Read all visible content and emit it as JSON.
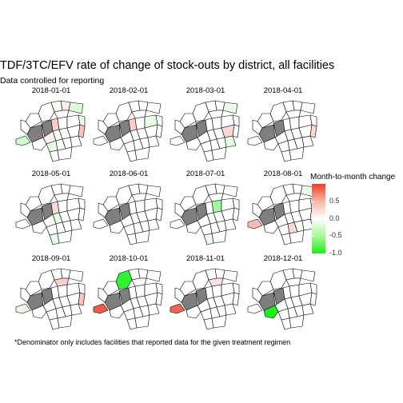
{
  "title": "TDF/3TC/EFV rate of change of stock-outs by district, all facilities",
  "subtitle": "Data controlled for reporting",
  "caption": "*Denominator only includes facilities that reported data for the given treatment regimen",
  "legend": {
    "title": "Month-to-month change",
    "ticks": [
      "0.5",
      "0.0",
      "-0.5",
      "-1.0"
    ],
    "tick_values": [
      0.5,
      0.0,
      -0.5,
      -1.0
    ],
    "range": [
      -1.0,
      1.0
    ],
    "colors": {
      "high": "#f03c28",
      "mid": "#ffffff",
      "low": "#1af01a",
      "no_data": "#7f7f7f"
    }
  },
  "panels": [
    {
      "label": "2018-01-01",
      "values": [
        -0.2,
        null,
        null,
        0.0,
        -0.05,
        0.1,
        -0.15,
        0.0,
        0.0,
        0.25,
        0.0,
        0.0,
        -0.1,
        0.0,
        0.05,
        0.0,
        0.0,
        0.0,
        0.3,
        -0.1,
        0.0,
        0.0,
        0.0,
        0.0,
        0.0,
        0.0
      ]
    },
    {
      "label": "2018-02-01",
      "values": [
        0.0,
        null,
        null,
        0.0,
        0.0,
        0.0,
        0.0,
        0.0,
        0.0,
        0.25,
        0.0,
        -0.1,
        0.0,
        0.0,
        0.0,
        0.0,
        0.0,
        0.0,
        0.0,
        0.0,
        0.0,
        0.0,
        0.0,
        0.0,
        -0.05,
        0.0
      ]
    },
    {
      "label": "2018-03-01",
      "values": [
        0.0,
        null,
        null,
        0.0,
        0.0,
        0.0,
        -0.1,
        0.0,
        0.0,
        0.0,
        0.0,
        0.0,
        0.0,
        0.0,
        0.0,
        0.0,
        0.0,
        0.2,
        0.0,
        0.0,
        0.0,
        0.0,
        -0.1,
        0.0,
        0.0,
        0.0
      ]
    },
    {
      "label": "2018-04-01",
      "values": [
        0.0,
        null,
        null,
        0.0,
        0.0,
        0.0,
        0.0,
        0.0,
        0.0,
        0.0,
        0.0,
        0.0,
        0.0,
        0.0,
        0.0,
        0.0,
        0.0,
        0.0,
        0.2,
        0.0,
        0.0,
        0.0,
        0.0,
        0.0,
        0.0,
        0.0
      ]
    },
    {
      "label": "2018-05-01",
      "values": [
        0.0,
        null,
        null,
        0.0,
        0.0,
        0.0,
        0.0,
        0.0,
        0.0,
        0.2,
        0.0,
        0.0,
        0.0,
        0.0,
        0.0,
        -0.1,
        0.0,
        0.0,
        0.0,
        0.0,
        0.0,
        0.0,
        0.0,
        -0.1,
        0.0,
        0.0
      ]
    },
    {
      "label": "2018-06-01",
      "values": [
        0.0,
        null,
        null,
        0.0,
        0.0,
        0.0,
        0.0,
        0.0,
        0.0,
        0.0,
        0.0,
        0.0,
        0.0,
        0.0,
        0.0,
        0.0,
        0.0,
        0.0,
        0.0,
        0.0,
        -0.05,
        0.0,
        0.0,
        0.0,
        0.0,
        0.0
      ]
    },
    {
      "label": "2018-07-01",
      "values": [
        0.0,
        null,
        null,
        0.0,
        0.0,
        0.0,
        0.0,
        0.0,
        0.0,
        0.0,
        -0.4,
        0.0,
        0.0,
        0.0,
        0.0,
        0.0,
        0.0,
        0.0,
        0.0,
        0.0,
        0.0,
        0.0,
        0.0,
        -0.1,
        0.0,
        0.0
      ]
    },
    {
      "label": "2018-08-01",
      "values": [
        0.35,
        null,
        null,
        0.0,
        0.0,
        0.0,
        -0.1,
        0.0,
        0.0,
        0.0,
        0.0,
        0.0,
        0.0,
        0.0,
        0.0,
        0.0,
        0.0,
        0.0,
        0.0,
        0.0,
        0.2,
        0.0,
        0.0,
        0.0,
        0.0,
        0.0
      ]
    },
    {
      "label": "2018-09-01",
      "values": [
        -0.1,
        null,
        null,
        0.0,
        0.0,
        0.0,
        0.0,
        0.0,
        0.0,
        0.0,
        0.0,
        0.0,
        0.0,
        0.25,
        0.0,
        0.0,
        0.0,
        0.0,
        0.3,
        0.0,
        0.0,
        0.0,
        0.0,
        0.0,
        0.0,
        0.0
      ]
    },
    {
      "label": "2018-10-01",
      "values": [
        0.85,
        null,
        null,
        -0.9,
        0.0,
        0.0,
        0.0,
        0.0,
        0.0,
        0.0,
        0.0,
        0.0,
        0.0,
        0.0,
        0.0,
        0.0,
        0.0,
        0.0,
        0.0,
        0.0,
        0.0,
        0.0,
        0.0,
        0.0,
        0.0,
        0.0
      ]
    },
    {
      "label": "2018-11-01",
      "values": [
        0.8,
        null,
        null,
        0.0,
        0.0,
        0.0,
        0.0,
        0.0,
        0.0,
        0.0,
        0.0,
        0.0,
        0.0,
        0.15,
        0.0,
        0.0,
        0.0,
        0.0,
        0.0,
        0.0,
        0.0,
        0.0,
        0.0,
        0.0,
        0.0,
        0.0
      ]
    },
    {
      "label": "2018-12-01",
      "values": [
        0.0,
        null,
        null,
        0.0,
        0.0,
        0.0,
        0.0,
        0.0,
        0.0,
        0.0,
        0.0,
        0.0,
        0.0,
        0.0,
        0.0,
        0.0,
        0.0,
        0.0,
        0.0,
        0.0,
        0.0,
        0.0,
        0.0,
        0.0,
        -1.0,
        0.0
      ]
    }
  ]
}
